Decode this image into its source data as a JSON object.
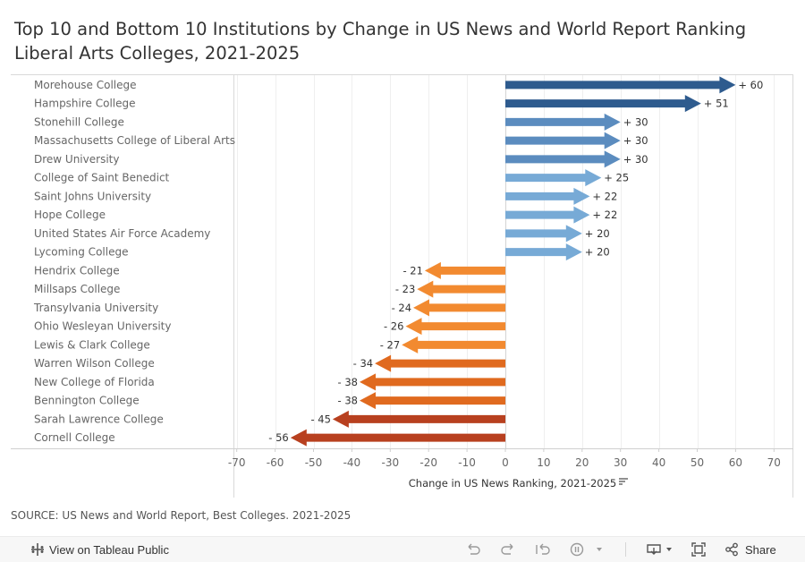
{
  "title": {
    "line1": "Top 10 and Bottom 10 Institutions by Change in US News and World Report Ranking",
    "line2": "Liberal Arts Colleges, 2021-2025"
  },
  "colors": {
    "positive_dark": "#2e5b8e",
    "positive_mid": "#5b8cbf",
    "positive_light": "#77aad6",
    "negative_light": "#f28a30",
    "negative_mid": "#e06a1f",
    "negative_dark": "#b8401f"
  },
  "chart_data": {
    "type": "bar",
    "orientation": "horizontal",
    "categories": [
      "Morehouse College",
      "Hampshire College",
      "Stonehill College",
      "Massachusetts College of Liberal Arts",
      "Drew University",
      "College of Saint Benedict",
      "Saint Johns University",
      "Hope College",
      "United States Air Force Academy",
      "Lycoming College",
      "Hendrix College",
      "Millsaps College",
      "Transylvania University",
      "Ohio Wesleyan University",
      "Lewis & Clark College",
      "Warren Wilson College",
      "New College of Florida",
      "Bennington College",
      "Sarah Lawrence College",
      "Cornell College"
    ],
    "values": [
      60,
      51,
      30,
      30,
      30,
      25,
      22,
      22,
      20,
      20,
      -21,
      -23,
      -24,
      -26,
      -27,
      -34,
      -38,
      -38,
      -45,
      -56
    ],
    "value_labels": [
      "+ 60",
      "+ 51",
      "+ 30",
      "+ 30",
      "+ 30",
      "+ 25",
      "+ 22",
      "+ 22",
      "+ 20",
      "+ 20",
      "- 21",
      "- 23",
      "- 24",
      "- 26",
      "- 27",
      "- 34",
      "- 38",
      "- 38",
      "- 45",
      "- 56"
    ],
    "xlim": [
      -70,
      70
    ],
    "xticks": [
      -70,
      -60,
      -50,
      -40,
      -30,
      -20,
      -10,
      0,
      10,
      20,
      30,
      40,
      50,
      60,
      70
    ],
    "xlabel": "Change in US News Ranking, 2021-2025",
    "ylabel": "",
    "grid": true,
    "mark_style": "arrow"
  },
  "source": "SOURCE: US News and World Report, Best Colleges. 2021-2025",
  "toolbar": {
    "view_label": "View on Tableau Public",
    "share_label": "Share"
  }
}
